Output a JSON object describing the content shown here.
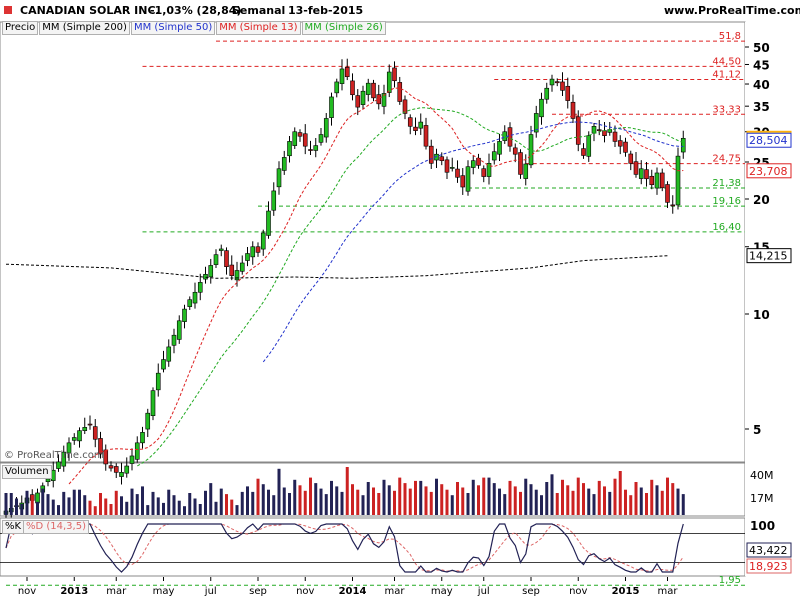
{
  "header": {
    "symbol": "CANADIAN SOLAR INC.",
    "change": "-1,03% (28,84)",
    "period": "Semanal",
    "date": "13-feb-2015",
    "site": "www.ProRealTime.com",
    "watermark": "© ProRealTime.com"
  },
  "indicators": [
    {
      "label": "Precio",
      "color": "#000000"
    },
    {
      "label": "MM (Simple 200)",
      "color": "#000000"
    },
    {
      "label": "MM (Simple 50)",
      "color": "#2233cc"
    },
    {
      "label": "MM (Simple 13)",
      "color": "#dd2222"
    },
    {
      "label": "MM (Simple 26)",
      "color": "#22aa22"
    }
  ],
  "volume_panel": {
    "label": "Volumen",
    "axis_labels": [
      "40M",
      "17M"
    ]
  },
  "stoch_panel": {
    "label_k": "%K",
    "label_d": "%D (14,3,5)",
    "axis_labels": [
      "100"
    ],
    "k_value": "43,422",
    "d_value": "18,923"
  },
  "chart_data": {
    "type": "candlestick",
    "y_scale": "log",
    "y_ticks": [
      5,
      10,
      15,
      20,
      25,
      30,
      35,
      40,
      45,
      50
    ],
    "x_labels": [
      {
        "label": "nov",
        "week": 4
      },
      {
        "label": "2013",
        "week": 13,
        "bold": true
      },
      {
        "label": "mar",
        "week": 21
      },
      {
        "label": "may",
        "week": 30
      },
      {
        "label": "jul",
        "week": 39
      },
      {
        "label": "sep",
        "week": 48
      },
      {
        "label": "nov",
        "week": 57
      },
      {
        "label": "2014",
        "week": 66,
        "bold": true
      },
      {
        "label": "mar",
        "week": 74
      },
      {
        "label": "may",
        "week": 83
      },
      {
        "label": "jul",
        "week": 91
      },
      {
        "label": "sep",
        "week": 100
      },
      {
        "label": "nov",
        "week": 109
      },
      {
        "label": "2015",
        "week": 118,
        "bold": true
      },
      {
        "label": "mar",
        "week": 126
      }
    ],
    "closes": [
      3.05,
      3.1,
      3.15,
      3.2,
      3.3,
      3.25,
      3.4,
      3.55,
      3.7,
      3.9,
      4.1,
      4.35,
      4.6,
      4.75,
      4.95,
      5.05,
      5.15,
      4.7,
      4.3,
      4.05,
      3.95,
      3.85,
      3.85,
      4.0,
      4.25,
      4.6,
      4.9,
      5.5,
      6.3,
      7.0,
      7.6,
      8.2,
      8.8,
      9.6,
      10.3,
      10.9,
      11.4,
      12.1,
      12.7,
      13.4,
      14.3,
      14.8,
      13.3,
      12.6,
      13.0,
      13.6,
      14.4,
      15.0,
      14.5,
      16.3,
      18.6,
      21.0,
      24.0,
      25.7,
      28.3,
      30.0,
      29.2,
      27.5,
      26.8,
      27.6,
      29.5,
      32.5,
      37.0,
      40.5,
      43.8,
      41.8,
      37.5,
      34.8,
      38.3,
      40.2,
      36.8,
      35.5,
      37.8,
      43.0,
      40.8,
      36.0,
      33.5,
      31.0,
      30.2,
      31.8,
      27.5,
      24.8,
      26.2,
      25.2,
      23.5,
      24.2,
      22.8,
      21.5,
      24.3,
      25.2,
      24.5,
      22.9,
      24.8,
      26.6,
      28.3,
      30.0,
      27.5,
      26.2,
      23.2,
      24.7,
      29.5,
      33.5,
      36.5,
      39.0,
      41.2,
      40.3,
      38.5,
      36.2,
      32.5,
      27.8,
      26.0,
      29.3,
      31.0,
      30.2,
      29.3,
      30.4,
      28.3,
      27.5,
      26.5,
      24.8,
      23.2,
      24.0,
      22.6,
      21.8,
      23.4,
      21.4,
      19.6,
      19.2,
      25.9,
      28.84
    ],
    "ma200_endpoints": [
      [
        0,
        13.5
      ],
      [
        20,
        13.2
      ],
      [
        40,
        12.4
      ],
      [
        55,
        12.5
      ],
      [
        66,
        12.4
      ],
      [
        80,
        12.6
      ],
      [
        100,
        13.2
      ],
      [
        110,
        13.8
      ],
      [
        126,
        14.215
      ]
    ],
    "ma50_value": 28.504,
    "ma13_value": 23.708,
    "last_close": 28.84,
    "hlines": [
      {
        "value": 51.8,
        "label": "51,8",
        "color": "#dd2222",
        "start_week": 40
      },
      {
        "value": 44.5,
        "label": "44,50",
        "color": "#dd2222",
        "start_week": 26
      },
      {
        "value": 41.12,
        "label": "41,12",
        "color": "#dd2222",
        "start_week": 93
      },
      {
        "value": 33.33,
        "label": "33,33",
        "color": "#dd2222",
        "start_week": 104
      },
      {
        "value": 24.75,
        "label": "24,75",
        "color": "#dd2222",
        "start_week": 99
      },
      {
        "value": 21.38,
        "label": "21,38",
        "color": "#22aa22",
        "start_week": 88
      },
      {
        "value": 19.16,
        "label": "19,16",
        "color": "#22aa22",
        "start_week": 48
      },
      {
        "value": 16.4,
        "label": "16,40",
        "color": "#22aa22",
        "start_week": 26
      },
      {
        "value": 1.95,
        "label": "1,95",
        "color": "#22aa22",
        "start_week": 0
      }
    ]
  }
}
